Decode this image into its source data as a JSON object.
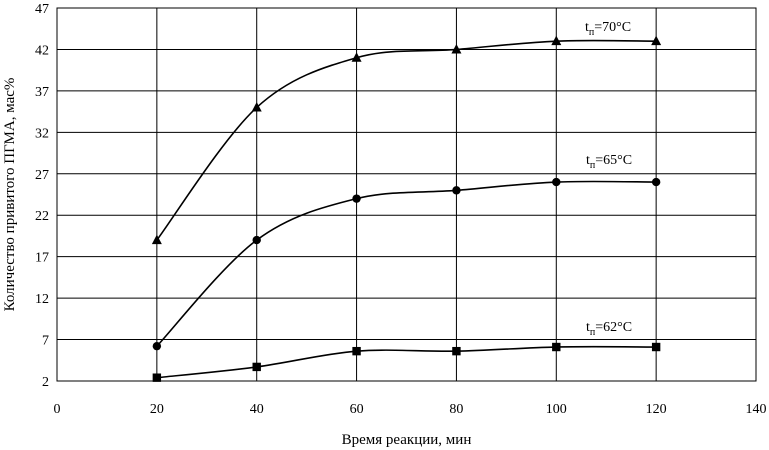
{
  "chart_data": {
    "type": "line",
    "xlabel": "Время реакции, мин",
    "ylabel": "Количество привитого ПГМА, мас%",
    "xlim": [
      0,
      140
    ],
    "ylim": [
      2,
      47
    ],
    "xticks": [
      "0",
      "20",
      "40",
      "60",
      "80",
      "100",
      "120",
      "140"
    ],
    "yticks": [
      "2",
      "7",
      "12",
      "17",
      "22",
      "27",
      "32",
      "37",
      "42",
      "47"
    ],
    "grid": true,
    "series": [
      {
        "name": "tп=70°C",
        "name_main": "t",
        "name_sub": "п",
        "name_rest": "=70°C",
        "marker": "triangle",
        "x": [
          20,
          40,
          60,
          80,
          100,
          120
        ],
        "values": [
          19,
          35,
          41,
          42,
          43,
          43
        ]
      },
      {
        "name": "tп=65°C",
        "name_main": "t",
        "name_sub": "п",
        "name_rest": "=65°C",
        "marker": "circle",
        "x": [
          20,
          40,
          60,
          80,
          100,
          120
        ],
        "values": [
          6.2,
          19,
          24,
          25,
          26,
          26
        ]
      },
      {
        "name": "tп=62°C",
        "name_main": "t",
        "name_sub": "п",
        "name_rest": "=62°C",
        "marker": "square",
        "x": [
          20,
          40,
          60,
          80,
          100,
          120
        ],
        "values": [
          2.4,
          3.7,
          5.6,
          5.6,
          6.1,
          6.1
        ]
      }
    ]
  }
}
